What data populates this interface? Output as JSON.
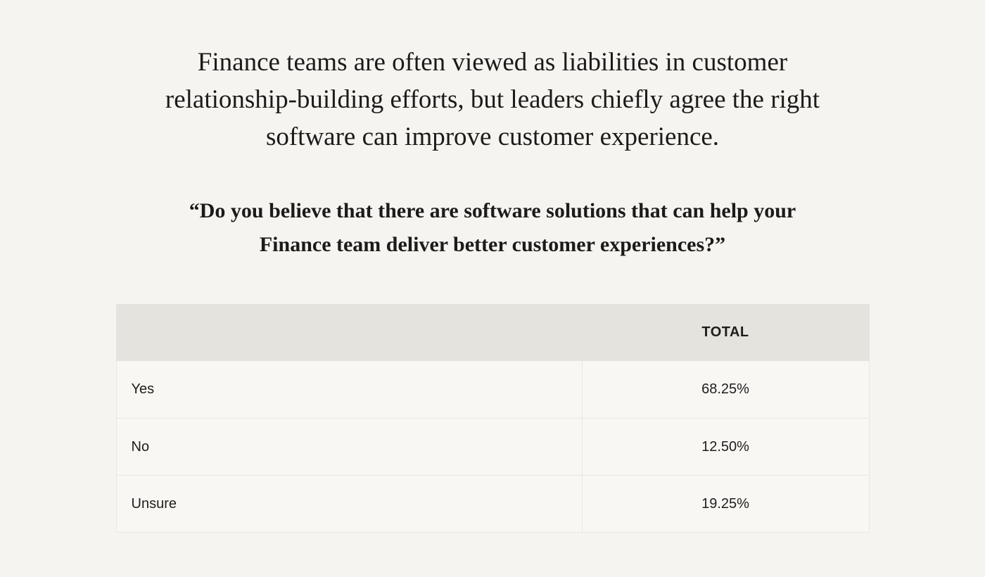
{
  "heading": {
    "lines": [
      "Finance teams are often viewed as liabilities in customer",
      "relationship-building efforts, but leaders chiefly agree the right",
      "software can improve customer experience."
    ]
  },
  "question": {
    "lines": [
      "“Do you believe that there are software solutions that can help your",
      "Finance team deliver better customer experiences?”"
    ]
  },
  "table": {
    "header": {
      "label": "",
      "total": "TOTAL"
    },
    "rows": [
      {
        "label": "Yes",
        "value": "68.25%"
      },
      {
        "label": "No",
        "value": "12.50%"
      },
      {
        "label": "Unsure",
        "value": "19.25%"
      }
    ]
  },
  "chart_data": {
    "type": "table",
    "title": "Do you believe that there are software solutions that can help your Finance team deliver better customer experiences?",
    "categories": [
      "Yes",
      "No",
      "Unsure"
    ],
    "series": [
      {
        "name": "TOTAL",
        "values": [
          68.25,
          12.5,
          19.25
        ]
      }
    ],
    "value_format": "percent",
    "legend_position": "none",
    "grid": false
  },
  "colors": {
    "page_bg": "#f5f4f1",
    "header_bg": "#e5e3de",
    "cell_bg": "#f8f7f4",
    "border": "#e9e7e1",
    "text": "#1c1b19"
  }
}
